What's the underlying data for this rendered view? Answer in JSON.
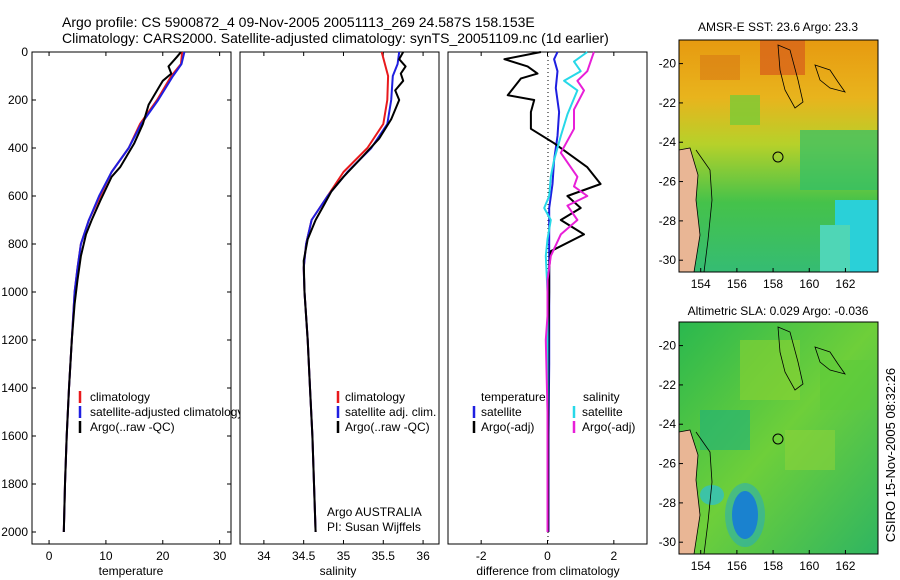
{
  "header": {
    "line1": "Argo profile: CS 5900872_4 09-Nov-2005 20051113_269 24.587S 158.153E",
    "line2": "Climatology: CARS2000. Satellite-adjusted climatology: synTS_20051109.nc (1d earlier)"
  },
  "side_label": "CSIRO 15-Nov-2005 08:32:26",
  "colors": {
    "clim": "#e8191c",
    "sat": "#1f1fe0",
    "argo": "#000000",
    "sal_sat": "#27d8e8",
    "sal_argo": "#e81fd8"
  },
  "chart_data": [
    {
      "type": "line",
      "id": "temperature",
      "xlabel": "temperature",
      "ylabel": "",
      "xlim": [
        -3,
        32
      ],
      "ylim": [
        2050,
        0
      ],
      "xticks": [
        "0",
        "10",
        "20",
        "30"
      ],
      "yticks": [
        "0",
        "200",
        "400",
        "600",
        "800",
        "1000",
        "1200",
        "1400",
        "1600",
        "1800",
        "2000"
      ],
      "legend": [
        "climatology",
        "satellite-adjusted climatology",
        "Argo(..raw -QC)"
      ],
      "series": [
        {
          "name": "climatology",
          "color": "clim",
          "points": [
            [
              23.4,
              0
            ],
            [
              23.2,
              50
            ],
            [
              21.5,
              100
            ],
            [
              19.0,
              200
            ],
            [
              16.0,
              300
            ],
            [
              14.0,
              400
            ],
            [
              11.0,
              500
            ],
            [
              9.0,
              600
            ],
            [
              7.0,
              700
            ],
            [
              5.6,
              800
            ],
            [
              5.0,
              900
            ],
            [
              4.5,
              1000
            ],
            [
              4.0,
              1200
            ],
            [
              3.5,
              1400
            ],
            [
              3.1,
              1600
            ],
            [
              2.8,
              1800
            ],
            [
              2.6,
              2000
            ]
          ]
        },
        {
          "name": "satellite",
          "color": "sat",
          "points": [
            [
              23.8,
              0
            ],
            [
              23.3,
              50
            ],
            [
              21.8,
              100
            ],
            [
              19.2,
              200
            ],
            [
              16.2,
              300
            ],
            [
              14.0,
              400
            ],
            [
              11.0,
              500
            ],
            [
              8.8,
              600
            ],
            [
              7.0,
              700
            ],
            [
              5.6,
              800
            ],
            [
              5.0,
              900
            ],
            [
              4.5,
              1000
            ],
            [
              4.0,
              1200
            ],
            [
              3.5,
              1400
            ],
            [
              3.1,
              1600
            ],
            [
              2.8,
              1800
            ],
            [
              2.6,
              2000
            ]
          ]
        },
        {
          "name": "Argo",
          "color": "argo",
          "points": [
            [
              23.2,
              0
            ],
            [
              22.5,
              20
            ],
            [
              21.0,
              60
            ],
            [
              21.5,
              90
            ],
            [
              20.0,
              120
            ],
            [
              19.5,
              140
            ],
            [
              17.5,
              220
            ],
            [
              16.5,
              300
            ],
            [
              15.0,
              380
            ],
            [
              13.5,
              440
            ],
            [
              12.5,
              480
            ],
            [
              11.0,
              520
            ],
            [
              10.0,
              570
            ],
            [
              9.0,
              620
            ],
            [
              7.5,
              700
            ],
            [
              6.5,
              760
            ],
            [
              5.6,
              850
            ],
            [
              5.0,
              950
            ],
            [
              4.5,
              1050
            ],
            [
              4.0,
              1200
            ],
            [
              3.5,
              1400
            ],
            [
              3.1,
              1600
            ],
            [
              2.8,
              1800
            ],
            [
              2.6,
              2000
            ]
          ]
        }
      ]
    },
    {
      "type": "line",
      "id": "salinity",
      "xlabel": "salinity",
      "ylabel": "",
      "xlim": [
        33.7,
        36.2
      ],
      "ylim": [
        2050,
        0
      ],
      "xticks": [
        "34",
        "34.5",
        "35",
        "35.5",
        "36"
      ],
      "yticks": [],
      "legend": [
        "climatology",
        "satellite adj. clim.",
        "Argo(..raw -QC)"
      ],
      "annotations": [
        "Argo AUSTRALIA",
        "PI: Susan Wijffels"
      ],
      "series": [
        {
          "name": "climatology",
          "color": "clim",
          "points": [
            [
              35.48,
              0
            ],
            [
              35.52,
              50
            ],
            [
              35.56,
              100
            ],
            [
              35.55,
              200
            ],
            [
              35.5,
              300
            ],
            [
              35.3,
              400
            ],
            [
              35.0,
              500
            ],
            [
              34.8,
              600
            ],
            [
              34.6,
              700
            ],
            [
              34.53,
              800
            ],
            [
              34.5,
              900
            ],
            [
              34.51,
              1000
            ],
            [
              34.55,
              1200
            ],
            [
              34.58,
              1400
            ],
            [
              34.61,
              1600
            ],
            [
              34.63,
              1800
            ],
            [
              34.65,
              2000
            ]
          ]
        },
        {
          "name": "satellite",
          "color": "sat",
          "points": [
            [
              35.7,
              0
            ],
            [
              35.68,
              50
            ],
            [
              35.62,
              100
            ],
            [
              35.6,
              200
            ],
            [
              35.55,
              300
            ],
            [
              35.35,
              400
            ],
            [
              35.05,
              500
            ],
            [
              34.8,
              600
            ],
            [
              34.6,
              700
            ],
            [
              34.53,
              800
            ],
            [
              34.5,
              900
            ],
            [
              34.51,
              1000
            ],
            [
              34.55,
              1200
            ],
            [
              34.58,
              1400
            ],
            [
              34.61,
              1600
            ],
            [
              34.63,
              1800
            ],
            [
              34.65,
              2000
            ]
          ]
        },
        {
          "name": "Argo",
          "color": "argo",
          "points": [
            [
              35.75,
              0
            ],
            [
              35.7,
              30
            ],
            [
              35.78,
              60
            ],
            [
              35.72,
              90
            ],
            [
              35.75,
              120
            ],
            [
              35.65,
              160
            ],
            [
              35.7,
              200
            ],
            [
              35.6,
              280
            ],
            [
              35.45,
              360
            ],
            [
              35.2,
              450
            ],
            [
              35.0,
              520
            ],
            [
              34.85,
              580
            ],
            [
              34.75,
              640
            ],
            [
              34.65,
              700
            ],
            [
              34.55,
              780
            ],
            [
              34.5,
              870
            ],
            [
              34.51,
              1000
            ],
            [
              34.55,
              1200
            ],
            [
              34.58,
              1400
            ],
            [
              34.61,
              1600
            ],
            [
              34.63,
              1800
            ],
            [
              34.65,
              2000
            ]
          ]
        }
      ]
    },
    {
      "type": "line",
      "id": "difference",
      "xlabel": "difference from climatology",
      "ylabel": "",
      "xlim": [
        -3,
        3
      ],
      "ylim": [
        2050,
        0
      ],
      "xticks": [
        "-2",
        "0",
        "2"
      ],
      "yticks": [],
      "legend_left": {
        "title": "temperature",
        "items": [
          "satellite",
          "Argo(-adj)"
        ]
      },
      "legend_right": {
        "title": "salinity",
        "items": [
          "satellite",
          "Argo(-adj)"
        ]
      },
      "series": [
        {
          "name": "temp satellite",
          "color": "sat",
          "points": [
            [
              0.3,
              0
            ],
            [
              0.2,
              30
            ],
            [
              0.3,
              80
            ],
            [
              0.25,
              150
            ],
            [
              0.35,
              250
            ],
            [
              0.3,
              350
            ],
            [
              0.2,
              450
            ],
            [
              0.15,
              550
            ],
            [
              0.05,
              650
            ],
            [
              0.05,
              800
            ],
            [
              0.05,
              1000
            ],
            [
              0.05,
              1300
            ],
            [
              0.03,
              1600
            ],
            [
              0.03,
              2000
            ]
          ]
        },
        {
          "name": "temp Argo",
          "color": "argo",
          "points": [
            [
              -0.2,
              0
            ],
            [
              -1.3,
              30
            ],
            [
              -0.6,
              60
            ],
            [
              -0.3,
              90
            ],
            [
              -0.8,
              110
            ],
            [
              -1.2,
              180
            ],
            [
              -0.4,
              200
            ],
            [
              -0.5,
              250
            ],
            [
              -0.5,
              320
            ],
            [
              0.2,
              380
            ],
            [
              0.6,
              420
            ],
            [
              1.2,
              480
            ],
            [
              1.6,
              550
            ],
            [
              0.6,
              600
            ],
            [
              1.0,
              650
            ],
            [
              0.4,
              700
            ],
            [
              1.1,
              760
            ],
            [
              0.1,
              830
            ],
            [
              0.05,
              900
            ],
            [
              0.05,
              1000
            ],
            [
              0.03,
              1200
            ],
            [
              0.02,
              1500
            ],
            [
              0.02,
              2000
            ]
          ]
        },
        {
          "name": "sal satellite",
          "color": "sal_sat",
          "points": [
            [
              1.2,
              0
            ],
            [
              0.8,
              40
            ],
            [
              1.0,
              80
            ],
            [
              0.5,
              120
            ],
            [
              0.9,
              160
            ],
            [
              0.6,
              260
            ],
            [
              0.4,
              350
            ],
            [
              0.2,
              450
            ],
            [
              0.1,
              520
            ],
            [
              0.05,
              600
            ],
            [
              -0.1,
              650
            ],
            [
              0.1,
              700
            ],
            [
              0.0,
              780
            ],
            [
              -0.05,
              850
            ],
            [
              0.0,
              1000
            ],
            [
              0.0,
              1300
            ],
            [
              0.0,
              2000
            ]
          ]
        },
        {
          "name": "sal Argo",
          "color": "sal_argo",
          "points": [
            [
              1.4,
              0
            ],
            [
              1.3,
              40
            ],
            [
              1.2,
              80
            ],
            [
              0.9,
              120
            ],
            [
              1.1,
              160
            ],
            [
              0.8,
              240
            ],
            [
              0.8,
              320
            ],
            [
              0.4,
              420
            ],
            [
              0.9,
              520
            ],
            [
              0.8,
              560
            ],
            [
              1.2,
              600
            ],
            [
              0.6,
              640
            ],
            [
              0.9,
              700
            ],
            [
              0.4,
              760
            ],
            [
              0.1,
              850
            ],
            [
              0.0,
              950
            ],
            [
              0.0,
              1100
            ],
            [
              -0.05,
              1200
            ],
            [
              0.0,
              1500
            ],
            [
              0.0,
              2000
            ]
          ]
        }
      ]
    },
    {
      "type": "heatmap",
      "id": "sst_map",
      "title": "AMSR-E SST: 23.6 Argo: 23.3",
      "xlim": [
        152.8,
        163.8
      ],
      "ylim": [
        -30.6,
        -18.8
      ],
      "xticks": [
        "154",
        "156",
        "158",
        "160",
        "162"
      ],
      "yticks": [
        "-20",
        "-22",
        "-24",
        "-26",
        "-28",
        "-30"
      ],
      "marker": {
        "lon": 158.15,
        "lat": -24.59
      }
    },
    {
      "type": "heatmap",
      "id": "sla_map",
      "title": "Altimetric SLA: 0.029 Argo: -0.036",
      "xlim": [
        152.8,
        163.8
      ],
      "ylim": [
        -30.6,
        -18.8
      ],
      "xticks": [
        "154",
        "156",
        "158",
        "160",
        "162"
      ],
      "yticks": [
        "-20",
        "-22",
        "-24",
        "-26",
        "-28",
        "-30"
      ],
      "marker": {
        "lon": 158.15,
        "lat": -24.59
      }
    }
  ]
}
